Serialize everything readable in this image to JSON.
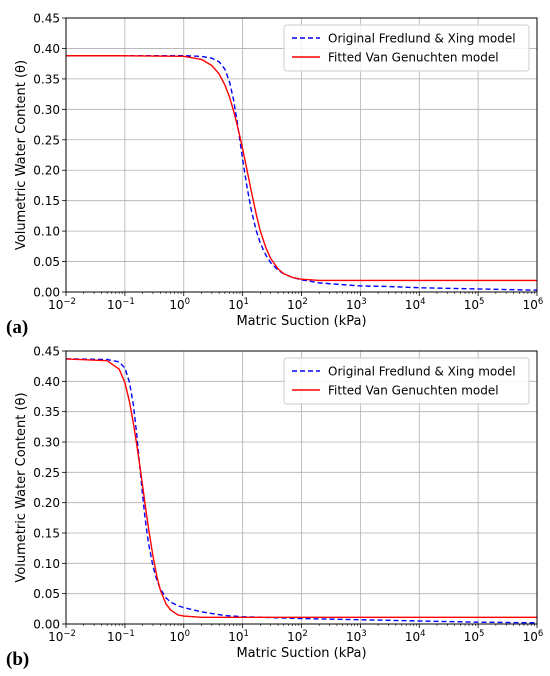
{
  "figure": {
    "panel_labels": [
      "(a)",
      "(b)"
    ]
  },
  "chart_data": [
    {
      "type": "line",
      "panel": "(a)",
      "xlabel": "Matric Suction (kPa)",
      "ylabel": "Volumetric Water Content (θ)",
      "xscale": "log",
      "xlim": [
        0.01,
        1000000
      ],
      "ylim": [
        0,
        0.45
      ],
      "xticks": [
        0.01,
        0.1,
        1,
        10,
        100,
        1000,
        10000,
        100000,
        1000000
      ],
      "xticklabels": [
        [
          "10",
          "−2"
        ],
        [
          "10",
          "−1"
        ],
        [
          "10",
          "0"
        ],
        [
          "10",
          "1"
        ],
        [
          "10",
          "2"
        ],
        [
          "10",
          "3"
        ],
        [
          "10",
          "4"
        ],
        [
          "10",
          "5"
        ],
        [
          "10",
          "6"
        ]
      ],
      "yticks": [
        0,
        0.05,
        0.1,
        0.15,
        0.2,
        0.25,
        0.3,
        0.35,
        0.4,
        0.45
      ],
      "yticklabels": [
        "0.00",
        "0.05",
        "0.10",
        "0.15",
        "0.20",
        "0.25",
        "0.30",
        "0.35",
        "0.40",
        "0.45"
      ],
      "grid": true,
      "legend_position": "top-right",
      "series": [
        {
          "name": "Original Fredlund & Xing model",
          "color": "#0000ff",
          "style": "dashed",
          "x": [
            0.01,
            0.1,
            1,
            2,
            3,
            4,
            5,
            6,
            7,
            8,
            9,
            10,
            11,
            12,
            14,
            17,
            20,
            25,
            30,
            40,
            50,
            70,
            100,
            200,
            500,
            1000,
            3000,
            10000,
            100000,
            1000000
          ],
          "y": [
            0.388,
            0.388,
            0.388,
            0.387,
            0.384,
            0.378,
            0.366,
            0.345,
            0.316,
            0.282,
            0.249,
            0.218,
            0.192,
            0.17,
            0.135,
            0.101,
            0.08,
            0.06,
            0.048,
            0.036,
            0.03,
            0.024,
            0.02,
            0.015,
            0.012,
            0.01,
            0.009,
            0.007,
            0.005,
            0.003
          ]
        },
        {
          "name": "Fitted Van Genuchten model",
          "color": "#ff0000",
          "style": "solid",
          "x": [
            0.01,
            0.1,
            1,
            2,
            3,
            4,
            5,
            6,
            7,
            8,
            9,
            10,
            11,
            12,
            14,
            17,
            20,
            25,
            30,
            40,
            50,
            70,
            100,
            200,
            500,
            1000,
            3000,
            10000,
            100000,
            1000000
          ],
          "y": [
            0.388,
            0.388,
            0.387,
            0.382,
            0.372,
            0.358,
            0.34,
            0.32,
            0.298,
            0.276,
            0.255,
            0.235,
            0.216,
            0.198,
            0.166,
            0.128,
            0.1,
            0.072,
            0.055,
            0.038,
            0.03,
            0.024,
            0.021,
            0.019,
            0.019,
            0.019,
            0.019,
            0.019,
            0.019,
            0.019
          ]
        }
      ]
    },
    {
      "type": "line",
      "panel": "(b)",
      "xlabel": "Matric Suction (kPa)",
      "ylabel": "Volumetric Water Content (θ)",
      "xscale": "log",
      "xlim": [
        0.01,
        1000000
      ],
      "ylim": [
        0,
        0.45
      ],
      "xticks": [
        0.01,
        0.1,
        1,
        10,
        100,
        1000,
        10000,
        100000,
        1000000
      ],
      "xticklabels": [
        [
          "10",
          "−2"
        ],
        [
          "10",
          "−1"
        ],
        [
          "10",
          "0"
        ],
        [
          "10",
          "1"
        ],
        [
          "10",
          "2"
        ],
        [
          "10",
          "3"
        ],
        [
          "10",
          "4"
        ],
        [
          "10",
          "5"
        ],
        [
          "10",
          "6"
        ]
      ],
      "yticks": [
        0,
        0.05,
        0.1,
        0.15,
        0.2,
        0.25,
        0.3,
        0.35,
        0.4,
        0.45
      ],
      "yticklabels": [
        "0.00",
        "0.05",
        "0.10",
        "0.15",
        "0.20",
        "0.25",
        "0.30",
        "0.35",
        "0.40",
        "0.45"
      ],
      "grid": true,
      "legend_position": "top-right",
      "series": [
        {
          "name": "Original Fredlund & Xing model",
          "color": "#0000ff",
          "style": "dashed",
          "x": [
            0.01,
            0.05,
            0.08,
            0.1,
            0.12,
            0.14,
            0.16,
            0.18,
            0.2,
            0.22,
            0.25,
            0.3,
            0.35,
            0.4,
            0.5,
            0.6,
            0.8,
            1,
            2,
            5,
            10,
            100,
            1000,
            10000,
            100000,
            1000000
          ],
          "y": [
            0.437,
            0.436,
            0.432,
            0.422,
            0.398,
            0.36,
            0.31,
            0.258,
            0.212,
            0.175,
            0.135,
            0.095,
            0.072,
            0.058,
            0.043,
            0.036,
            0.03,
            0.027,
            0.02,
            0.014,
            0.012,
            0.009,
            0.007,
            0.005,
            0.003,
            0.002
          ]
        },
        {
          "name": "Fitted Van Genuchten model",
          "color": "#ff0000",
          "style": "solid",
          "x": [
            0.01,
            0.05,
            0.08,
            0.1,
            0.12,
            0.14,
            0.16,
            0.18,
            0.2,
            0.22,
            0.25,
            0.3,
            0.35,
            0.4,
            0.5,
            0.6,
            0.8,
            1,
            2,
            5,
            10,
            100,
            1000,
            10000,
            100000,
            1000000
          ],
          "y": [
            0.437,
            0.434,
            0.42,
            0.398,
            0.366,
            0.33,
            0.294,
            0.26,
            0.228,
            0.198,
            0.16,
            0.112,
            0.078,
            0.056,
            0.033,
            0.023,
            0.015,
            0.013,
            0.011,
            0.011,
            0.011,
            0.011,
            0.011,
            0.011,
            0.011,
            0.011
          ]
        }
      ]
    }
  ]
}
